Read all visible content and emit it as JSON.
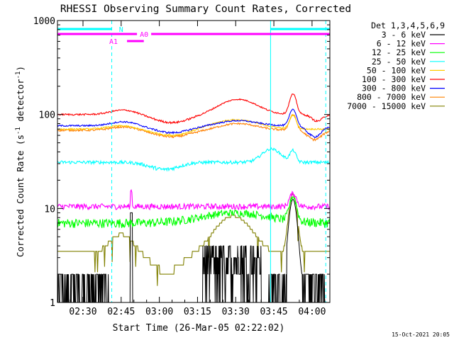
{
  "chart_data": {
    "type": "line",
    "title": "RHESSI Observing Summary Count Rates, Corrected",
    "xlabel": "Start Time (26-Mar-05 02:22:02)",
    "ylabel_main": "Corrected Count Rate (s",
    "ylabel_sup1": "-1",
    "ylabel_mid": " detector",
    "ylabel_sup2": "-1",
    "ylabel_end": ")",
    "y_scale": "log",
    "ylim": [
      1,
      1000
    ],
    "xlim_minutes": [
      -5.03,
      102.0
    ],
    "x_origin": "02:22:02",
    "x_ticks": [
      {
        "m": 5,
        "label": "02:30"
      },
      {
        "m": 20,
        "label": "02:45"
      },
      {
        "m": 35,
        "label": "03:00"
      },
      {
        "m": 50,
        "label": "03:15"
      },
      {
        "m": 65,
        "label": "03:30"
      },
      {
        "m": 80,
        "label": "03:45"
      },
      {
        "m": 95,
        "label": "04:00"
      }
    ],
    "y_ticks": [
      {
        "v": 1,
        "label": "1"
      },
      {
        "v": 10,
        "label": "10"
      },
      {
        "v": 100,
        "label": "100"
      },
      {
        "v": 1000,
        "label": "1000"
      }
    ],
    "legend_title": "Det 1,3,4,5,6,9",
    "legend_position": "right",
    "series": [
      {
        "name": "3 - 6 keV",
        "color": "#000000"
      },
      {
        "name": "6 - 12 keV",
        "color": "#ff00ff"
      },
      {
        "name": "12 - 25 keV",
        "color": "#00ff00"
      },
      {
        "name": "25 - 50 keV",
        "color": "#00ffff"
      },
      {
        "name": "50 - 100 keV",
        "color": "#ffcc00"
      },
      {
        "name": "100 - 300 keV",
        "color": "#ff0000"
      },
      {
        "name": "300 - 800 keV",
        "color": "#0000ff"
      },
      {
        "name": "800 - 7000 keV",
        "color": "#ff8000"
      },
      {
        "name": "7000 - 15000 keV",
        "color": "#808000"
      }
    ],
    "attenuator_bars": [
      {
        "label": "N",
        "color": "#00ffff",
        "segments": [
          [
            -5.03,
            16.3
          ],
          [
            78.7,
            102.0
          ]
        ]
      },
      {
        "label": "A0",
        "color": "#ff00ff",
        "segments": [
          [
            -5.03,
            102.0
          ]
        ]
      },
      {
        "label": "A1",
        "color": "#ff00ff",
        "segments": [
          [
            22.3,
            28.9
          ]
        ]
      }
    ],
    "solid_vlines": [
      78.7
    ],
    "dashed_vlines": [
      16.3,
      100.4
    ],
    "timestamp": "15-Oct-2021 20:05"
  }
}
